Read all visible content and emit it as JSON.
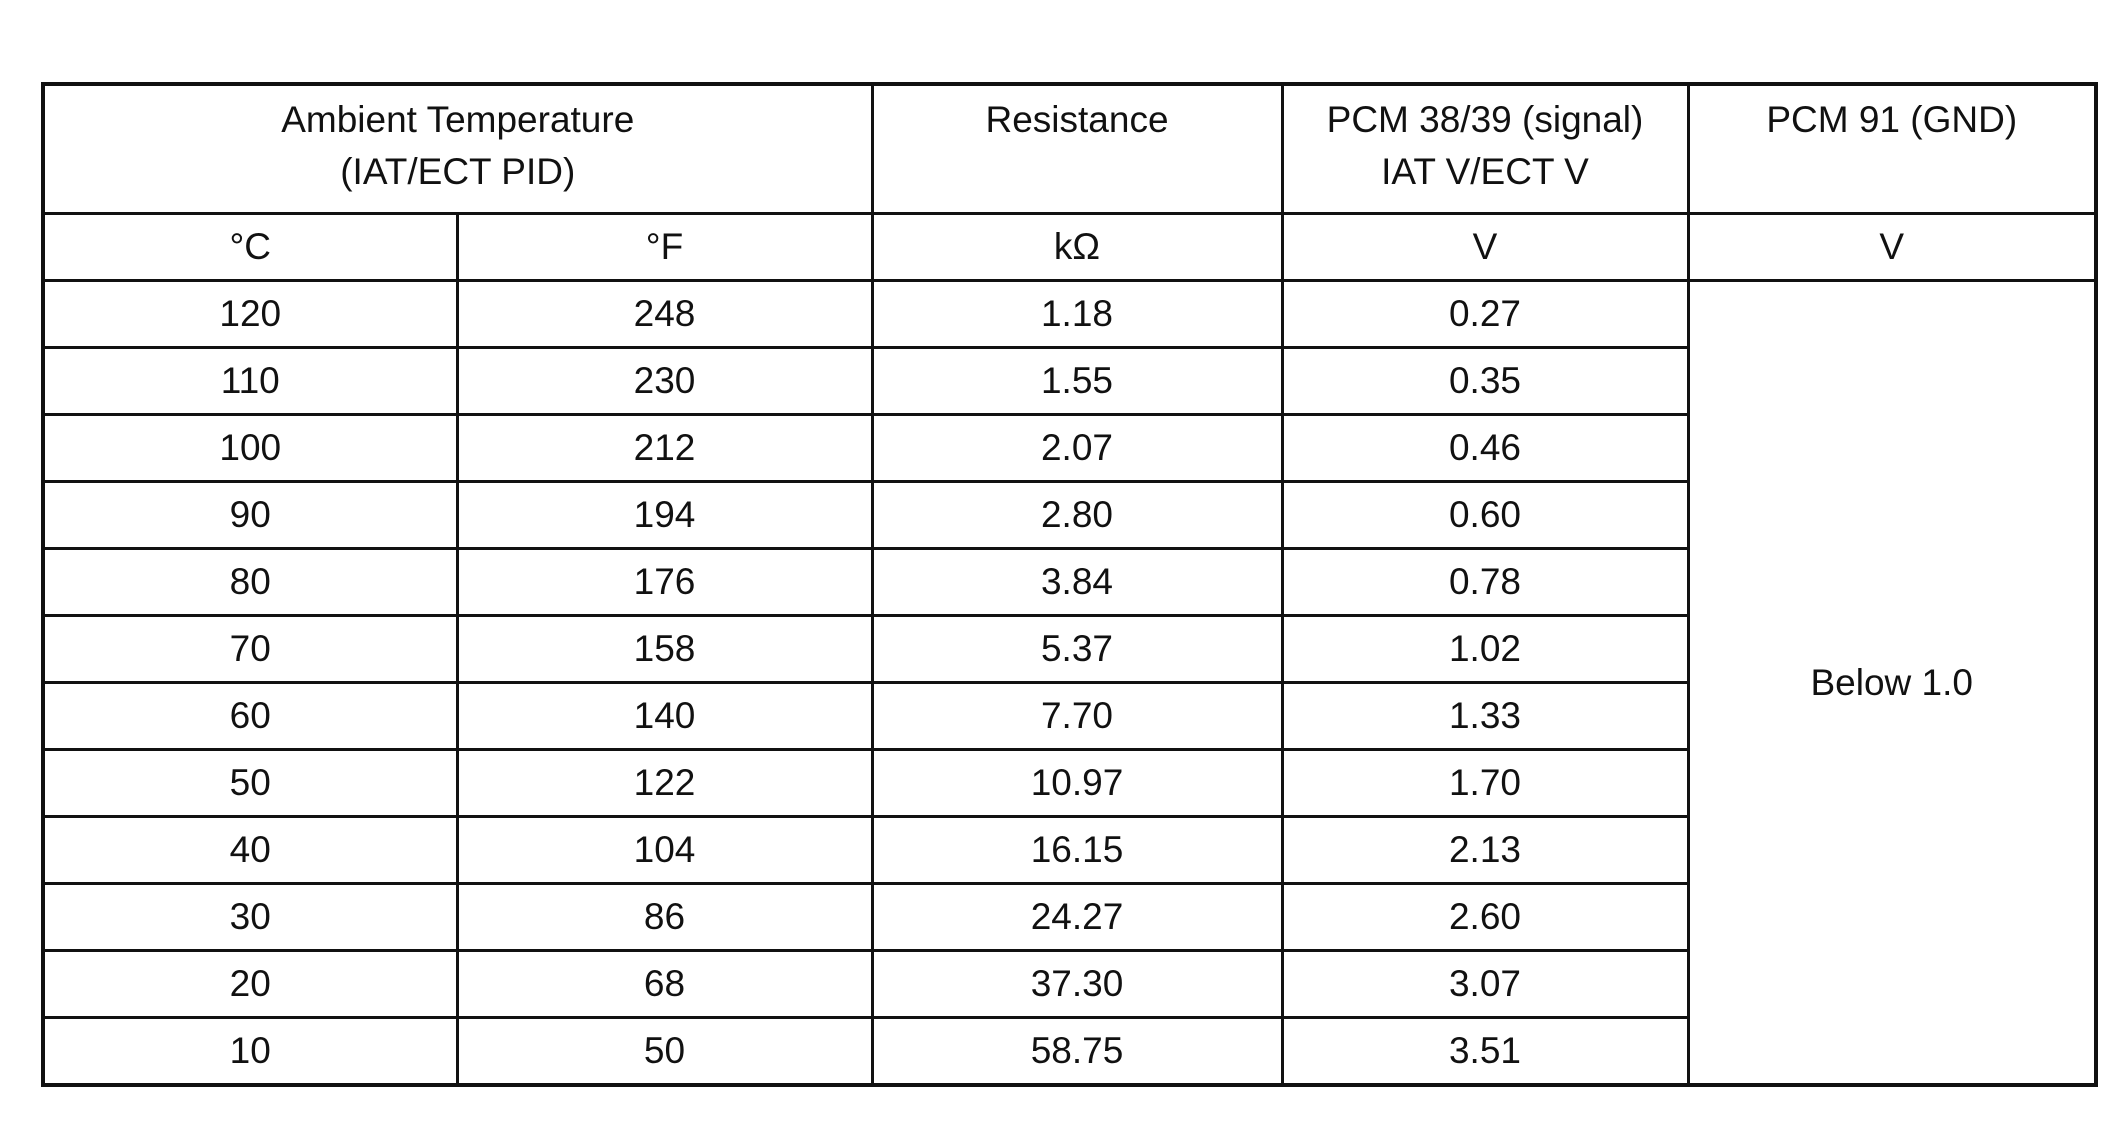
{
  "table": {
    "header": [
      {
        "lines": [
          "Ambient Temperature",
          "(IAT/ECT PID)"
        ]
      },
      {
        "lines": [
          "Resistance"
        ]
      },
      {
        "lines": [
          "PCM 38/39 (signal)",
          "IAT V/ECT V"
        ]
      },
      {
        "lines": [
          "PCM 91 (GND)"
        ]
      }
    ],
    "units": [
      "°C",
      "°F",
      "kΩ",
      "V",
      "V"
    ],
    "rows": [
      [
        "120",
        "248",
        "1.18",
        "0.27"
      ],
      [
        "110",
        "230",
        "1.55",
        "0.35"
      ],
      [
        "100",
        "212",
        "2.07",
        "0.46"
      ],
      [
        "90",
        "194",
        "2.80",
        "0.60"
      ],
      [
        "80",
        "176",
        "3.84",
        "0.78"
      ],
      [
        "70",
        "158",
        "5.37",
        "1.02"
      ],
      [
        "60",
        "140",
        "7.70",
        "1.33"
      ],
      [
        "50",
        "122",
        "10.97",
        "1.70"
      ],
      [
        "40",
        "104",
        "16.15",
        "2.13"
      ],
      [
        "30",
        "86",
        "24.27",
        "2.60"
      ],
      [
        "20",
        "68",
        "37.30",
        "3.07"
      ],
      [
        "10",
        "50",
        "58.75",
        "3.51"
      ]
    ],
    "gnd_value": "Below 1.0"
  }
}
